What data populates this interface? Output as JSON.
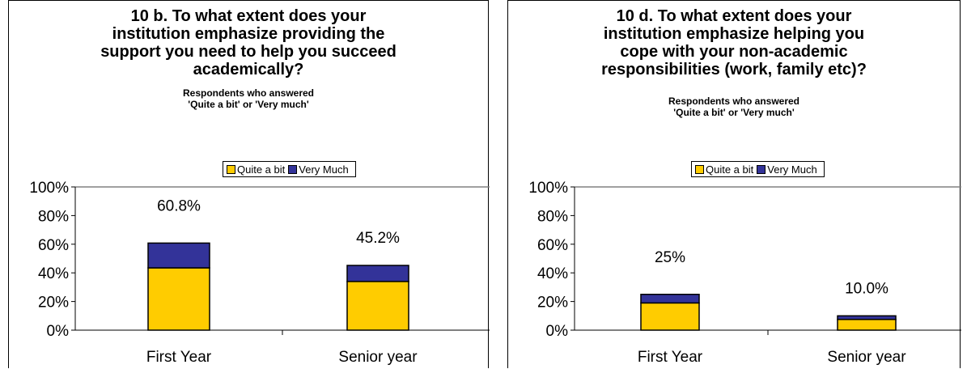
{
  "chart_data": [
    {
      "type": "bar",
      "stacked": true,
      "title": "10 b. To what extent does your\ninstitution emphasize providing the\nsupport you need  to help you succeed\nacademically?",
      "subtitle": "Respondents who answered\n'Quite a bit' or 'Very much'",
      "categories": [
        "First Year",
        "Senior year"
      ],
      "series": [
        {
          "name": "Quite a bit",
          "values": [
            43.5,
            34.0
          ],
          "color": "#FFCC00"
        },
        {
          "name": "Very Much",
          "values": [
            17.3,
            11.2
          ],
          "color": "#333399"
        }
      ],
      "totals": [
        60.8,
        45.2
      ],
      "total_labels": [
        "60.8%",
        "45.2%"
      ],
      "yticks": [
        "0%",
        "20%",
        "40%",
        "60%",
        "80%",
        "100%"
      ],
      "ylim": [
        0,
        100
      ],
      "grid": false,
      "legend_position": "top-center"
    },
    {
      "type": "bar",
      "stacked": true,
      "title": "10 d. To what extent does your\ninstitution emphasize helping you\ncope with your non-academic\nresponsibilities (work, family etc)?",
      "subtitle": "Respondents who answered\n'Quite a bit' or 'Very much'",
      "categories": [
        "First Year",
        "Senior year"
      ],
      "series": [
        {
          "name": "Quite a bit",
          "values": [
            19.0,
            7.5
          ],
          "color": "#FFCC00"
        },
        {
          "name": "Very Much",
          "values": [
            6.0,
            2.5
          ],
          "color": "#333399"
        }
      ],
      "totals": [
        25,
        10.0
      ],
      "total_labels": [
        "25%",
        "10.0%"
      ],
      "yticks": [
        "0%",
        "20%",
        "40%",
        "60%",
        "80%",
        "100%"
      ],
      "ylim": [
        0,
        100
      ],
      "grid": false,
      "legend_position": "top-center"
    }
  ]
}
